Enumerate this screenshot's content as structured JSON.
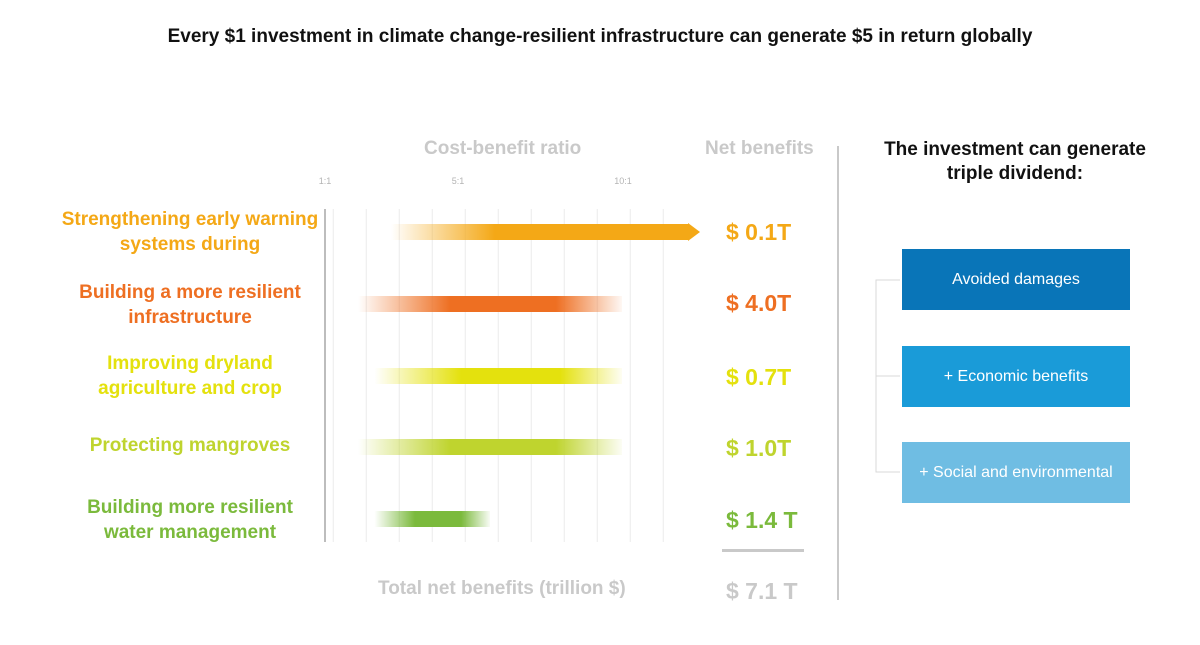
{
  "chart_data": {
    "type": "bar",
    "title": "Every $1 investment in climate change-resilient infrastructure can generate $5 in return globally",
    "xlabel": "Cost-benefit ratio",
    "net_header": "Net benefits",
    "ticks": [
      "1:1",
      "5:1",
      "10:1"
    ],
    "categories": [
      "Strengthening early warning systems during",
      "Building a more resilient infrastructure",
      "Improving dryland agriculture and crop",
      "Protecting mangroves",
      "Building more resilient water management"
    ],
    "ranges": [
      [
        3,
        12
      ],
      [
        2,
        10
      ],
      [
        2.5,
        10
      ],
      [
        2,
        10
      ],
      [
        2.5,
        6
      ]
    ],
    "net_benefits": [
      "$ 0.1T",
      "$ 4.0T",
      "$ 0.7T",
      "$ 1.0T",
      "$ 1.4 T"
    ],
    "colors": [
      "#f4a816",
      "#ee6f22",
      "#e4e10d",
      "#bfd42e",
      "#7bba3c"
    ],
    "total_label": "Total net benefits (trillion $)",
    "total_value": "$ 7.1 T"
  },
  "dividend": {
    "title": "The investment can generate triple dividend:",
    "items": [
      {
        "label": "Avoided damages",
        "color": "#0975b8"
      },
      {
        "label": "+ Economic benefits",
        "color": "#1a9bd8"
      },
      {
        "label": "+ Social and environmental",
        "color": "#6fbde3"
      }
    ]
  }
}
